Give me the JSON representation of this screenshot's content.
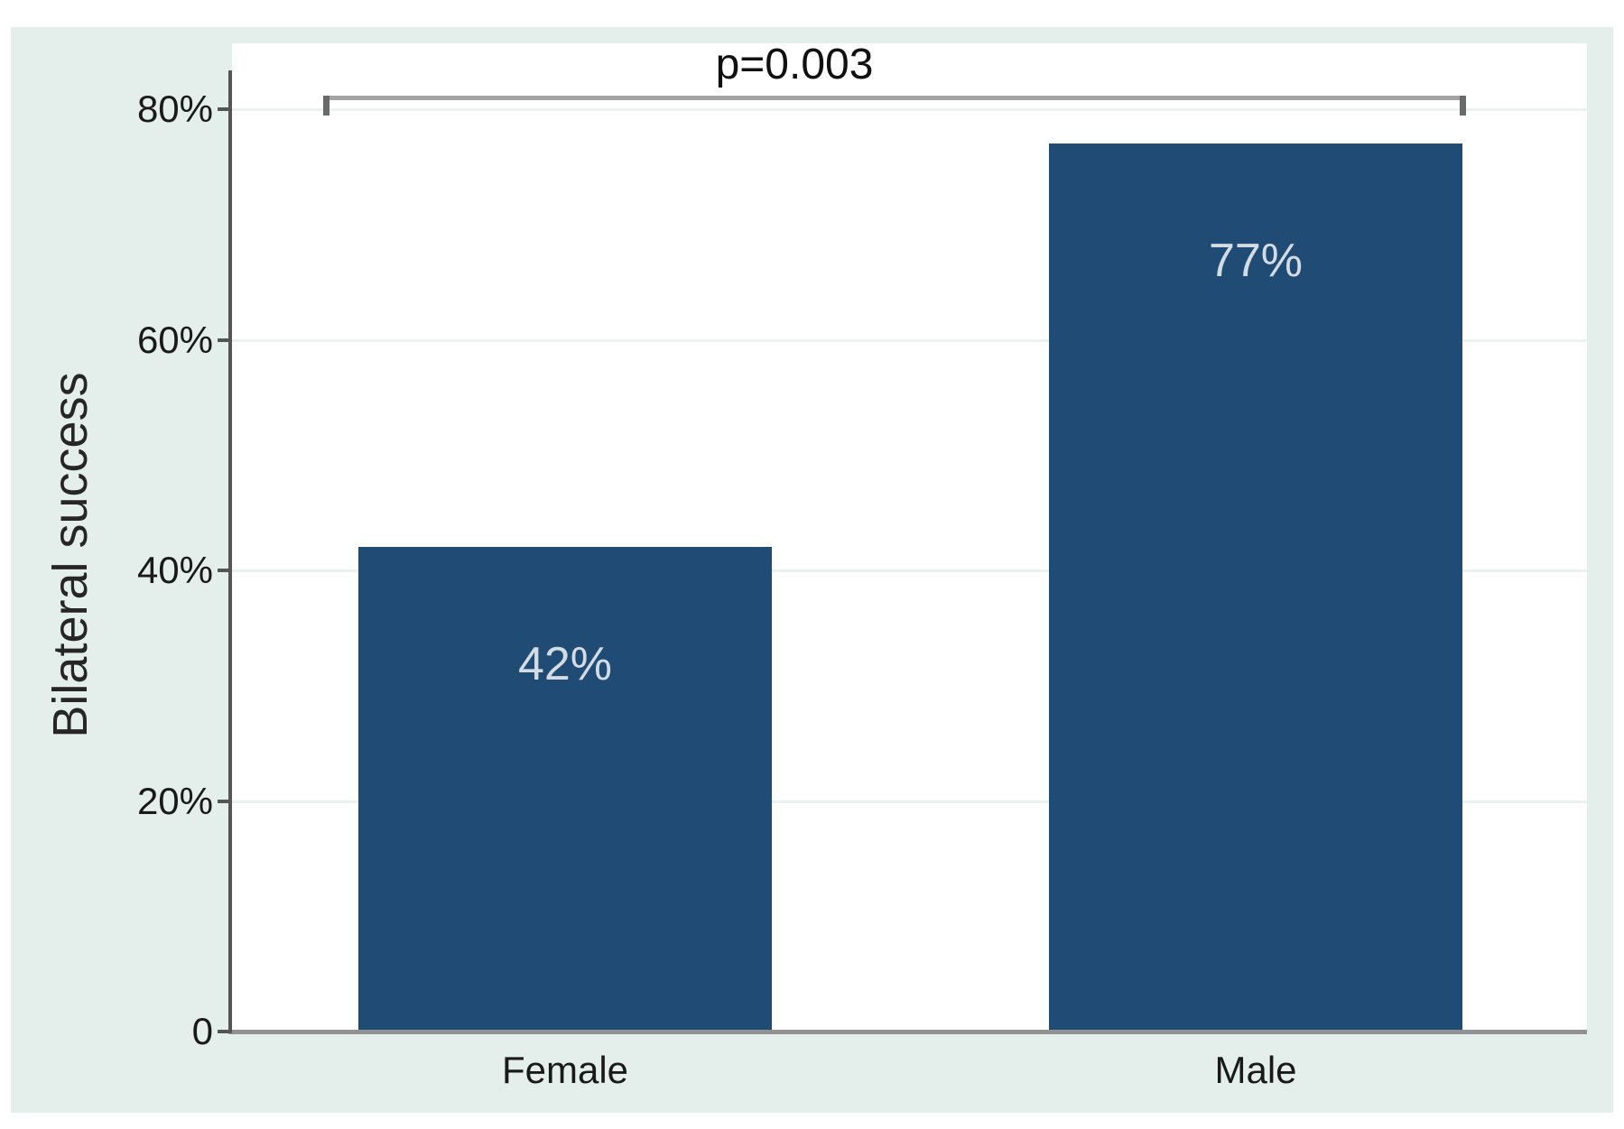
{
  "chart_data": {
    "type": "bar",
    "categories": [
      "Female",
      "Male"
    ],
    "values": [
      42,
      77
    ],
    "bar_value_labels": [
      "42%",
      "77%"
    ],
    "title": "",
    "xlabel": "",
    "ylabel": "Bilateral success",
    "ylim": [
      0,
      83
    ],
    "yticks": [
      0,
      20,
      40,
      60,
      80
    ],
    "ytick_labels": [
      "0",
      "20%",
      "40%",
      "60%",
      "80%"
    ],
    "grid": "horizontal",
    "legend": "none",
    "annotation": {
      "text": "p=0.003",
      "style": "significance-bracket",
      "connects": [
        "Female",
        "Male"
      ]
    },
    "colors": {
      "bar": "#204b75",
      "bar_label": "#d3dbe5",
      "panel_background": "#e4eeeb",
      "plot_background": "#ffffff",
      "axis_text": "#1a1a1a",
      "bracket": "#a4a4a4"
    }
  }
}
